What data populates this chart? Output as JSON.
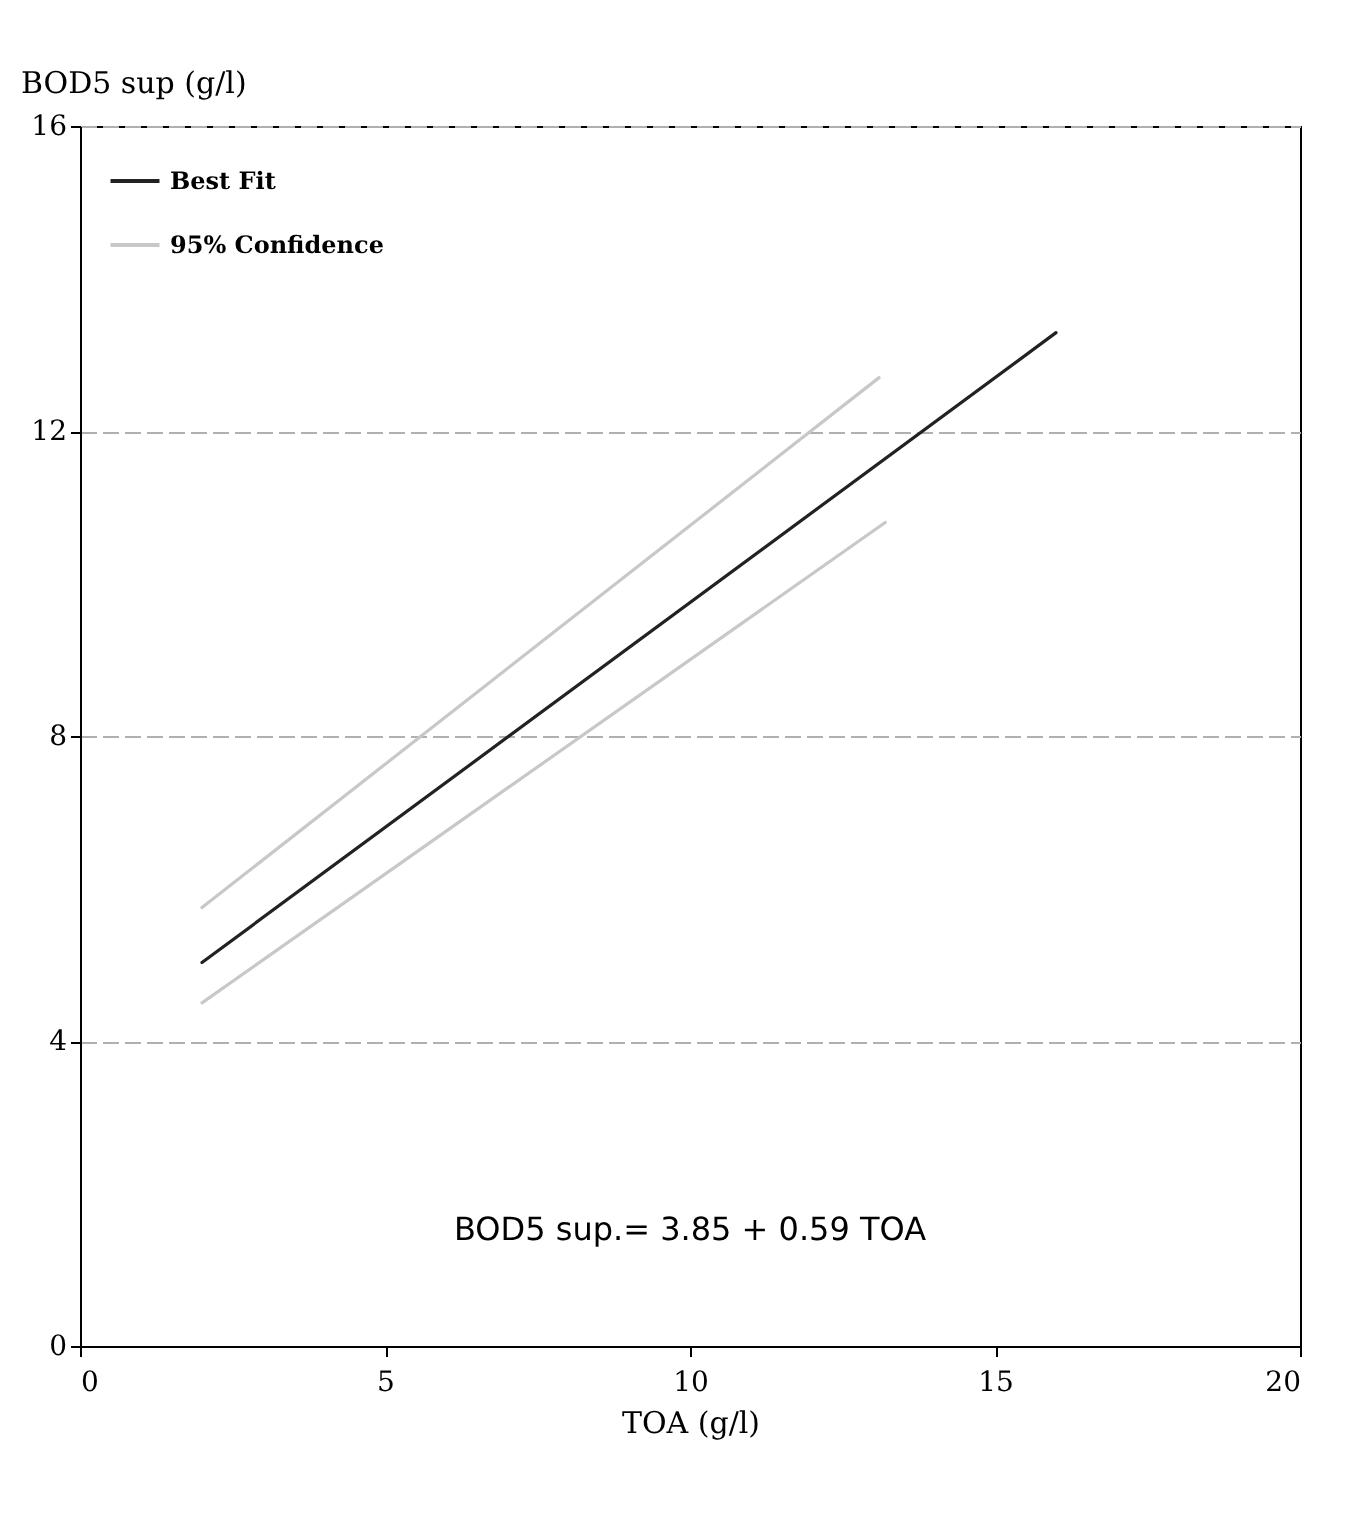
{
  "chart_data": {
    "type": "line",
    "xlabel": "TOA    (g/l)",
    "ylabel": "BOD5 sup (g/l)",
    "xlim": [
      0,
      20
    ],
    "xticks": [
      0,
      5,
      10,
      15,
      20
    ],
    "ylim": [
      0,
      16
    ],
    "yticks": [
      0,
      4,
      8,
      12,
      16
    ],
    "grid": "y",
    "legend": "top left",
    "line_style": "solid",
    "annotations": [
      "BOD5 sup.= 3.85 + 0.59 TOA"
    ],
    "series": [
      {
        "name": "Best Fit",
        "color": "#222222",
        "x": [
          2,
          16
        ],
        "values": [
          5.03,
          13.29
        ]
      },
      {
        "name": "95% Confidence",
        "color": "#c8c8c8",
        "x": [
          2,
          13.1
        ],
        "values": [
          5.75,
          12.7
        ]
      },
      {
        "color": "#c8c8c8",
        "x": [
          2,
          13.2
        ],
        "values": [
          4.5,
          10.8
        ]
      }
    ]
  }
}
